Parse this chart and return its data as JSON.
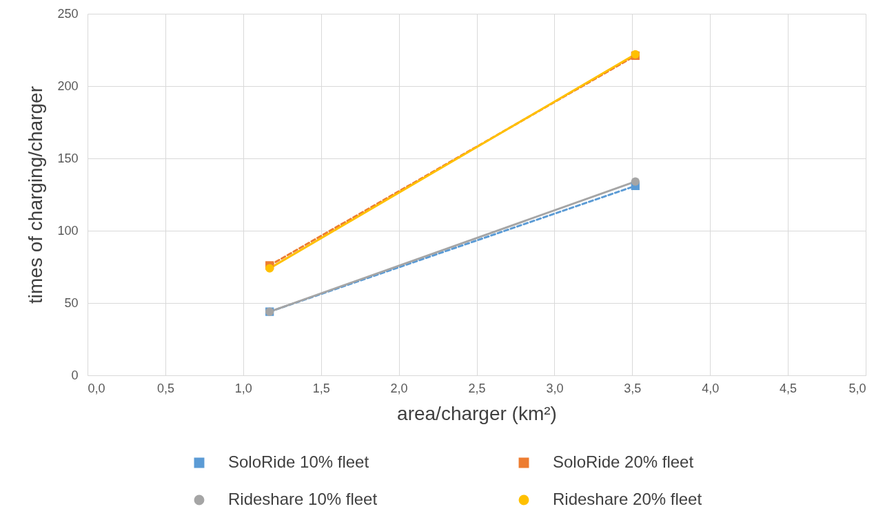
{
  "chart_data": {
    "type": "line",
    "xlabel": "area/charger (km²)",
    "ylabel": "times of charging/charger",
    "xlim": [
      0,
      5
    ],
    "xticks": [
      {
        "value": 0,
        "label": "0,0"
      },
      {
        "value": 0.5,
        "label": "0,5"
      },
      {
        "value": 1,
        "label": "1,0"
      },
      {
        "value": 1.5,
        "label": "1,5"
      },
      {
        "value": 2,
        "label": "2,0"
      },
      {
        "value": 2.5,
        "label": "2,5"
      },
      {
        "value": 3,
        "label": "3,0"
      },
      {
        "value": 3.5,
        "label": "3,5"
      },
      {
        "value": 4,
        "label": "4,0"
      },
      {
        "value": 4.5,
        "label": "4,5"
      },
      {
        "value": 5,
        "label": "5,0"
      }
    ],
    "ylim": [
      0,
      250
    ],
    "yticks": [
      0,
      50,
      100,
      150,
      200,
      250
    ],
    "grid": true,
    "legend": "bottom",
    "x": [
      1.17,
      3.52
    ],
    "series": [
      {
        "name": "SoloRide 10% fleet",
        "color": "#5b9bd5",
        "values": [
          44,
          131
        ],
        "marker": "square",
        "line_style": "dashed"
      },
      {
        "name": "SoloRide 20% fleet",
        "color": "#ed7d31",
        "values": [
          76,
          221
        ],
        "marker": "square",
        "line_style": "dashed"
      },
      {
        "name": "Rideshare 10% fleet",
        "color": "#a5a5a5",
        "values": [
          44,
          134
        ],
        "marker": "circle",
        "line_style": "solid"
      },
      {
        "name": "Rideshare 20% fleet",
        "color": "#ffc000",
        "values": [
          74,
          222
        ],
        "marker": "circle",
        "line_style": "solid"
      }
    ]
  }
}
